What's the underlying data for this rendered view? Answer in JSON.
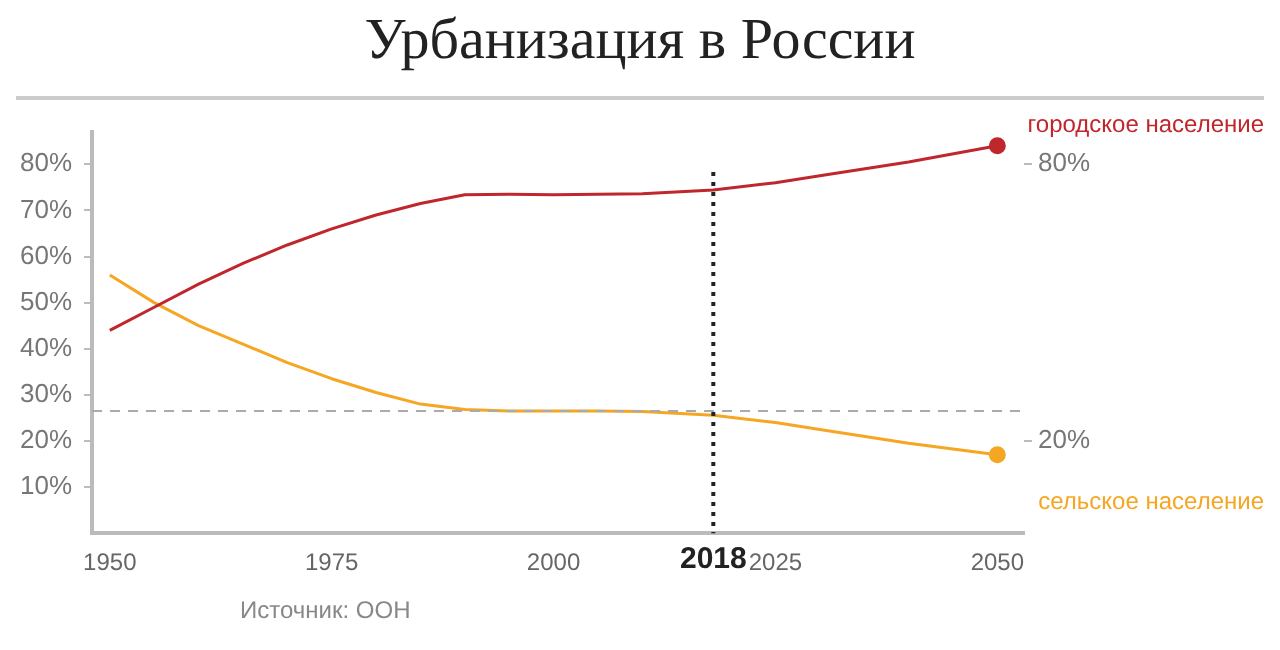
{
  "chart_data": {
    "type": "line",
    "title": "Урбанизация в России",
    "x": [
      1950,
      1955,
      1960,
      1965,
      1970,
      1975,
      1980,
      1985,
      1990,
      1995,
      2000,
      2005,
      2010,
      2018,
      2025,
      2030,
      2040,
      2050
    ],
    "series": [
      {
        "name": "городское население",
        "color": "#c0272d",
        "values": [
          44,
          49,
          54,
          58.5,
          62.5,
          66,
          69,
          71.5,
          73.4,
          73.5,
          73.4,
          73.5,
          73.6,
          74.4,
          76,
          77.5,
          80.5,
          84
        ]
      },
      {
        "name": "сельское население",
        "color": "#f5a623",
        "values": [
          56,
          50,
          45,
          41,
          37,
          33.5,
          30.5,
          28,
          26.8,
          26.5,
          26.5,
          26.5,
          26.4,
          25.6,
          24,
          22.5,
          19.5,
          17
        ]
      }
    ],
    "xlim": [
      1948,
      2053
    ],
    "xticks": [
      1950,
      1975,
      2000,
      2025,
      2050
    ],
    "ylim": [
      0,
      87
    ],
    "yticks": [
      {
        "value": 10,
        "label": "10%"
      },
      {
        "value": 20,
        "label": "20%"
      },
      {
        "value": 30,
        "label": "30%"
      },
      {
        "value": 40,
        "label": "40%"
      },
      {
        "value": 50,
        "label": "50%"
      },
      {
        "value": 60,
        "label": "60%"
      },
      {
        "value": 70,
        "label": "70%"
      },
      {
        "value": 80,
        "label": "80%"
      }
    ],
    "ref_lines": [
      {
        "axis": "x",
        "value": 2018,
        "label": "2018",
        "color": "#222222",
        "line_style": "dotted"
      },
      {
        "axis": "y",
        "value": 26.5,
        "color": "#aaaaaa",
        "line_style": "dashed"
      }
    ],
    "y2lim": [
      0,
      87
    ],
    "y2ticks": [
      {
        "value": 20,
        "label": "20%"
      },
      {
        "value": 80,
        "label": "80%"
      }
    ],
    "annotations": [
      "Источник: ООН"
    ],
    "grid": false,
    "legend": false
  }
}
